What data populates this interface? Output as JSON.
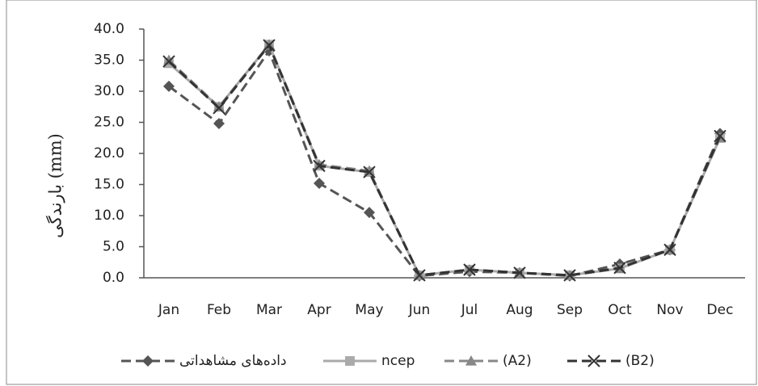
{
  "chart_data": {
    "type": "line",
    "y_label": "بارندگی (mm)",
    "categories": [
      "Jan",
      "Feb",
      "Mar",
      "Apr",
      "May",
      "Jun",
      "Jul",
      "Aug",
      "Sep",
      "Oct",
      "Nov",
      "Dec"
    ],
    "ylim": [
      0,
      40
    ],
    "yticks": [
      {
        "value": 0,
        "label": "0.0"
      },
      {
        "value": 5,
        "label": "5.0"
      },
      {
        "value": 10,
        "label": "10.0"
      },
      {
        "value": 15,
        "label": "15.0"
      },
      {
        "value": 20,
        "label": "20.0"
      },
      {
        "value": 25,
        "label": "25.0"
      },
      {
        "value": 30,
        "label": "30.0"
      },
      {
        "value": 35,
        "label": "35.0"
      },
      {
        "value": 40,
        "label": "40.0"
      }
    ],
    "grid": false,
    "legend": "bottom",
    "series": [
      {
        "name": "داده‌های مشاهداتی",
        "color": "#555555",
        "marker": "diamond",
        "dashed": true,
        "values": [
          30.8,
          24.8,
          36.5,
          15.2,
          10.5,
          0.3,
          1.0,
          0.8,
          0.3,
          2.2,
          4.5,
          23.2
        ]
      },
      {
        "name": "ncep",
        "color": "#aaaaaa",
        "marker": "square",
        "dashed": false,
        "values": [
          34.5,
          27.5,
          37.5,
          18.0,
          17.0,
          0.4,
          1.3,
          0.8,
          0.4,
          1.5,
          4.5,
          22.5
        ]
      },
      {
        "name": "(A2)",
        "color": "#888888",
        "marker": "triangle",
        "dashed": true,
        "values": [
          35.0,
          27.5,
          37.5,
          18.2,
          17.2,
          0.4,
          1.3,
          0.8,
          0.4,
          1.5,
          4.5,
          22.5
        ]
      },
      {
        "name": "(B2)",
        "color": "#333333",
        "marker": "x",
        "dashed": true,
        "values": [
          34.8,
          27.3,
          37.4,
          18.0,
          17.0,
          0.4,
          1.3,
          0.8,
          0.4,
          1.6,
          4.5,
          22.8
        ]
      }
    ]
  }
}
